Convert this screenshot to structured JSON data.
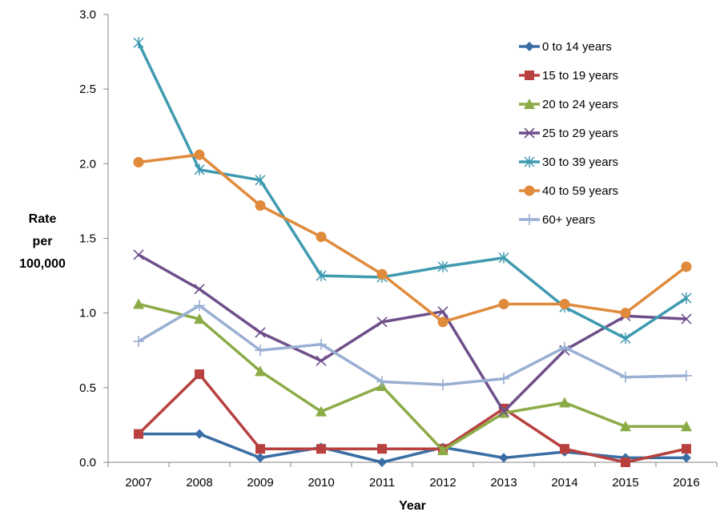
{
  "chart_data": {
    "type": "line",
    "title": "",
    "xlabel": "Year",
    "ylabel_lines": [
      "Rate",
      "per",
      "100,000"
    ],
    "categories": [
      "2007",
      "2008",
      "2009",
      "2010",
      "2011",
      "2012",
      "2013",
      "2014",
      "2015",
      "2016"
    ],
    "ylim": [
      0,
      3
    ],
    "yticks": [
      0,
      0.5,
      1,
      1.5,
      2,
      2.5,
      3
    ],
    "ytick_labels": [
      "0.0",
      "0.5",
      "1.0",
      "1.5",
      "2.0",
      "2.5",
      "3.0"
    ],
    "grid": false,
    "legend_position": "top-right",
    "series": [
      {
        "name": "0 to 14 years",
        "color": "#3a6ea5",
        "marker": "diamond",
        "values": [
          0.19,
          0.19,
          0.03,
          0.1,
          0.0,
          0.1,
          0.03,
          0.07,
          0.03,
          0.03
        ]
      },
      {
        "name": "15 to 19 years",
        "color": "#b8413f",
        "marker": "square",
        "values": [
          0.19,
          0.59,
          0.09,
          0.09,
          0.09,
          0.09,
          0.36,
          0.09,
          0.0,
          0.09
        ]
      },
      {
        "name": "20 to 24 years",
        "color": "#8bab46",
        "marker": "triangle",
        "values": [
          1.06,
          0.96,
          0.61,
          0.34,
          0.51,
          0.08,
          0.33,
          0.4,
          0.24,
          0.24
        ]
      },
      {
        "name": "25 to 29 years",
        "color": "#6e4f8a",
        "marker": "x",
        "values": [
          1.39,
          1.16,
          0.87,
          0.68,
          0.94,
          1.01,
          0.34,
          0.75,
          0.98,
          0.96
        ]
      },
      {
        "name": "30 to 39 years",
        "color": "#3f9ab0",
        "marker": "star",
        "values": [
          2.81,
          1.96,
          1.89,
          1.25,
          1.24,
          1.31,
          1.37,
          1.04,
          0.83,
          1.1
        ]
      },
      {
        "name": "40 to 59 years",
        "color": "#e08a3c",
        "marker": "circle",
        "values": [
          2.01,
          2.06,
          1.72,
          1.51,
          1.26,
          0.94,
          1.06,
          1.06,
          1.0,
          1.31
        ]
      },
      {
        "name": "60+ years",
        "color": "#99afd3",
        "marker": "plus",
        "values": [
          0.81,
          1.05,
          0.75,
          0.79,
          0.54,
          0.52,
          0.56,
          0.77,
          0.57,
          0.58
        ]
      }
    ]
  }
}
